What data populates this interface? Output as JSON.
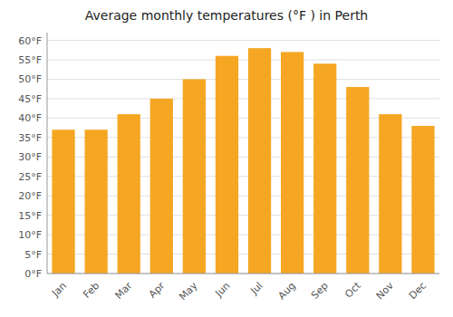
{
  "chart_data": {
    "type": "bar",
    "title": "Average monthly temperatures (°F ) in Perth",
    "categories": [
      "Jan",
      "Feb",
      "Mar",
      "Apr",
      "May",
      "Jun",
      "Jul",
      "Aug",
      "Sep",
      "Oct",
      "Nov",
      "Dec"
    ],
    "values": [
      37,
      37,
      41,
      45,
      50,
      56,
      58,
      57,
      54,
      48,
      41,
      38
    ],
    "color": "#F5A623",
    "ylim": [
      0,
      62
    ],
    "yticks": [
      {
        "value": 0,
        "label": "0°F"
      },
      {
        "value": 5,
        "label": "5°F"
      },
      {
        "value": 10,
        "label": "10°F"
      },
      {
        "value": 15,
        "label": "15°F"
      },
      {
        "value": 20,
        "label": "20°F"
      },
      {
        "value": 25,
        "label": "25°F"
      },
      {
        "value": 30,
        "label": "30°F"
      },
      {
        "value": 35,
        "label": "35°F"
      },
      {
        "value": 40,
        "label": "40°F"
      },
      {
        "value": 45,
        "label": "45°F"
      },
      {
        "value": 50,
        "label": "50°F"
      },
      {
        "value": 55,
        "label": "55°F"
      },
      {
        "value": 60,
        "label": "60°F"
      }
    ],
    "grid": true
  }
}
